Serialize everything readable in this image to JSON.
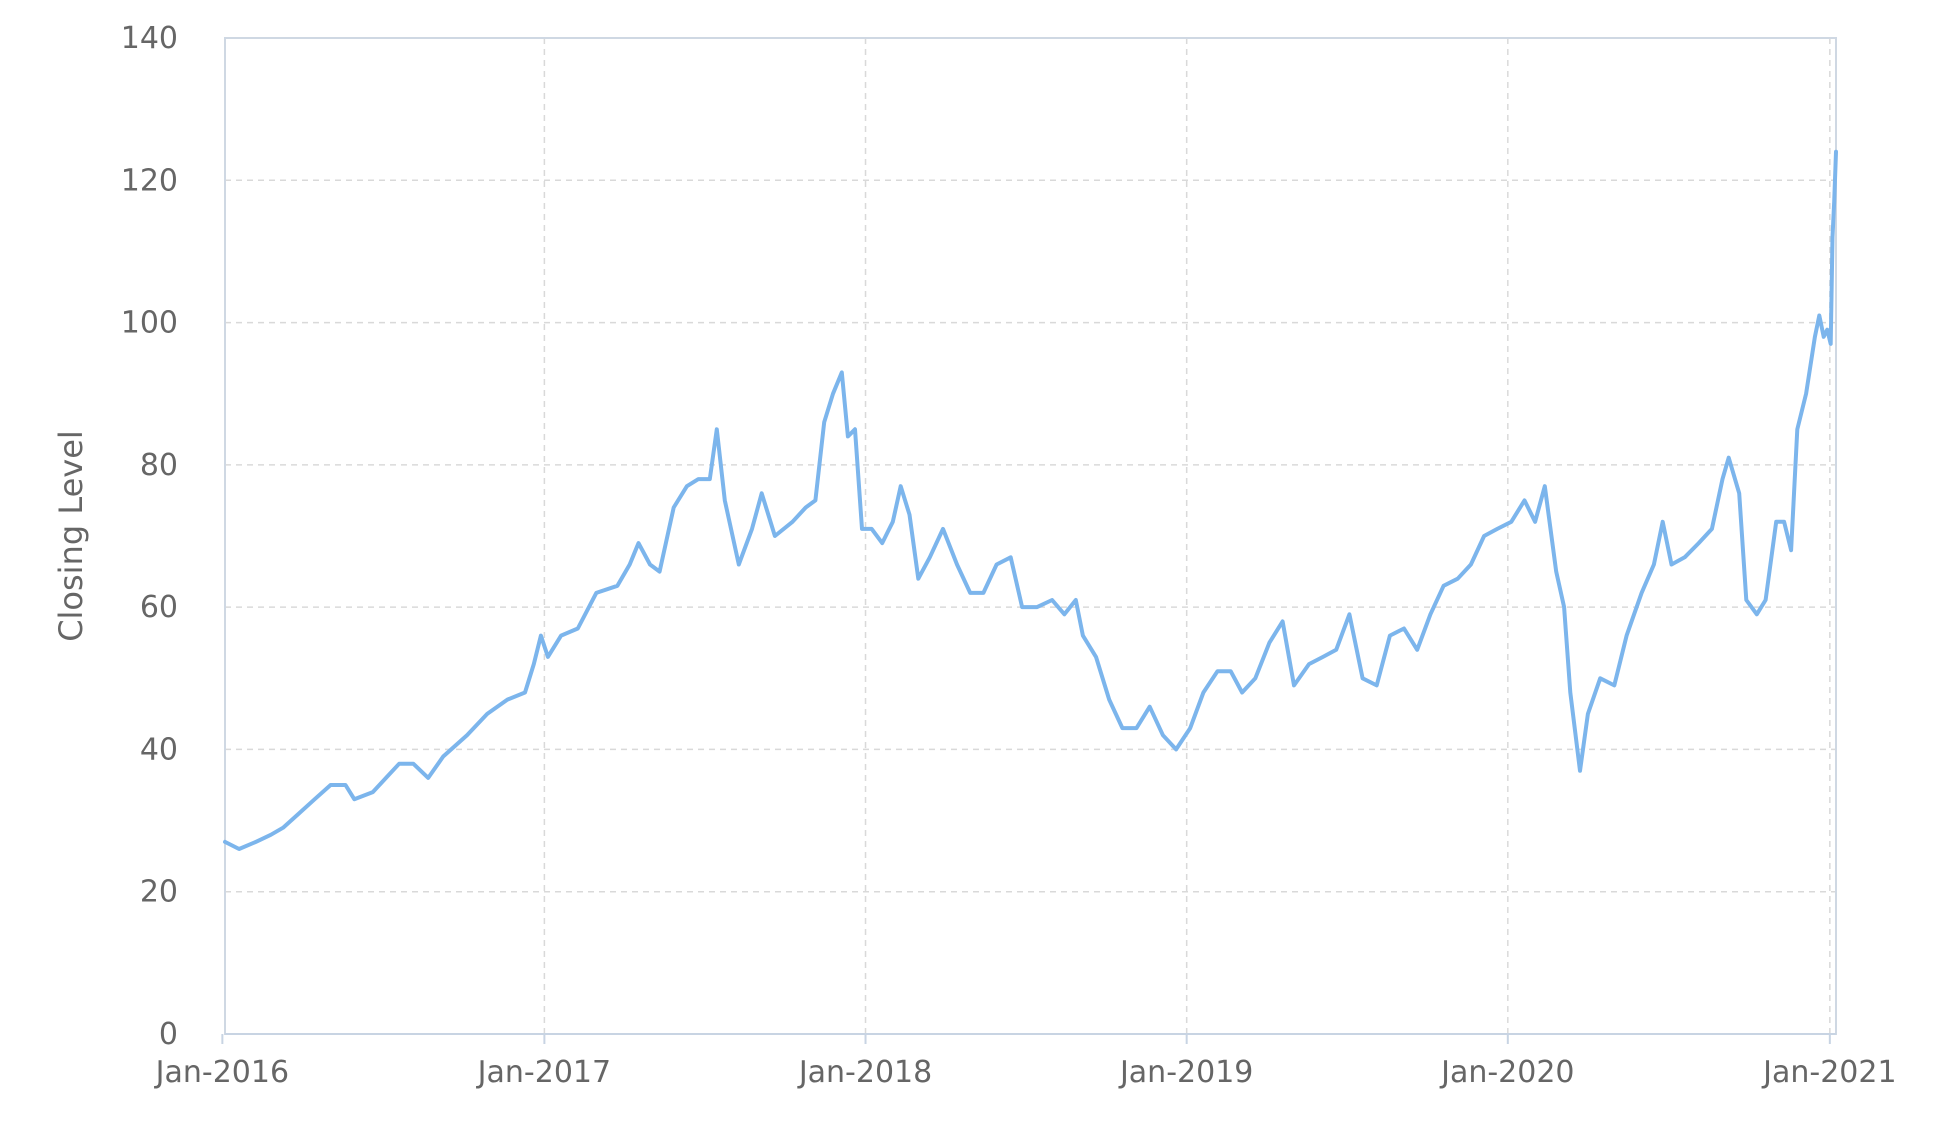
{
  "chart_data": {
    "type": "line",
    "title": "",
    "xlabel": "",
    "ylabel": "Closing Level",
    "ylim": [
      0,
      140
    ],
    "yticks": [
      "0",
      "20",
      "40",
      "60",
      "80",
      "100",
      "120",
      "140"
    ],
    "xlim": [
      "2016-01-04",
      "2021-01-08"
    ],
    "xticks": [
      {
        "date": "2016-01-01",
        "label": "Jan-2016"
      },
      {
        "date": "2017-01-01",
        "label": "Jan-2017"
      },
      {
        "date": "2018-01-01",
        "label": "Jan-2018"
      },
      {
        "date": "2019-01-01",
        "label": "Jan-2019"
      },
      {
        "date": "2020-01-01",
        "label": "Jan-2020"
      },
      {
        "date": "2021-01-01",
        "label": "Jan-2021"
      }
    ],
    "grid": true,
    "legend": "none",
    "colors": {
      "line": "#7cb5ec",
      "grid": "#d9d9d9",
      "text": "#666666"
    },
    "series": [
      {
        "values": [
          [
            "2016-01-04",
            27
          ],
          [
            "2016-01-20",
            26
          ],
          [
            "2016-02-08",
            27
          ],
          [
            "2016-02-25",
            28
          ],
          [
            "2016-03-10",
            29
          ],
          [
            "2016-03-28",
            31
          ],
          [
            "2016-04-15",
            33
          ],
          [
            "2016-05-03",
            35
          ],
          [
            "2016-05-20",
            35
          ],
          [
            "2016-05-30",
            33
          ],
          [
            "2016-06-20",
            34
          ],
          [
            "2016-07-05",
            36
          ],
          [
            "2016-07-20",
            38
          ],
          [
            "2016-08-05",
            38
          ],
          [
            "2016-08-22",
            36
          ],
          [
            "2016-09-08",
            39
          ],
          [
            "2016-10-05",
            42
          ],
          [
            "2016-10-28",
            45
          ],
          [
            "2016-11-20",
            47
          ],
          [
            "2016-12-10",
            48
          ],
          [
            "2016-12-20",
            52
          ],
          [
            "2016-12-28",
            56
          ],
          [
            "2017-01-05",
            53
          ],
          [
            "2017-01-20",
            56
          ],
          [
            "2017-02-08",
            57
          ],
          [
            "2017-03-01",
            62
          ],
          [
            "2017-03-25",
            63
          ],
          [
            "2017-04-08",
            66
          ],
          [
            "2017-04-18",
            69
          ],
          [
            "2017-05-01",
            66
          ],
          [
            "2017-05-12",
            65
          ],
          [
            "2017-05-28",
            74
          ],
          [
            "2017-06-12",
            77
          ],
          [
            "2017-06-25",
            78
          ],
          [
            "2017-07-08",
            78
          ],
          [
            "2017-07-16",
            85
          ],
          [
            "2017-07-25",
            75
          ],
          [
            "2017-08-10",
            66
          ],
          [
            "2017-08-25",
            71
          ],
          [
            "2017-09-05",
            76
          ],
          [
            "2017-09-20",
            70
          ],
          [
            "2017-10-10",
            72
          ],
          [
            "2017-10-25",
            74
          ],
          [
            "2017-11-05",
            75
          ],
          [
            "2017-11-15",
            86
          ],
          [
            "2017-11-25",
            90
          ],
          [
            "2017-12-05",
            93
          ],
          [
            "2017-12-12",
            84
          ],
          [
            "2017-12-20",
            85
          ],
          [
            "2017-12-28",
            71
          ],
          [
            "2018-01-08",
            71
          ],
          [
            "2018-01-20",
            69
          ],
          [
            "2018-02-01",
            72
          ],
          [
            "2018-02-10",
            77
          ],
          [
            "2018-02-20",
            73
          ],
          [
            "2018-03-02",
            64
          ],
          [
            "2018-03-15",
            67
          ],
          [
            "2018-03-30",
            71
          ],
          [
            "2018-04-15",
            66
          ],
          [
            "2018-04-30",
            62
          ],
          [
            "2018-05-15",
            62
          ],
          [
            "2018-05-30",
            66
          ],
          [
            "2018-06-15",
            67
          ],
          [
            "2018-06-28",
            60
          ],
          [
            "2018-07-15",
            60
          ],
          [
            "2018-08-01",
            61
          ],
          [
            "2018-08-15",
            59
          ],
          [
            "2018-08-28",
            61
          ],
          [
            "2018-09-05",
            56
          ],
          [
            "2018-09-20",
            53
          ],
          [
            "2018-10-05",
            47
          ],
          [
            "2018-10-20",
            43
          ],
          [
            "2018-11-05",
            43
          ],
          [
            "2018-11-20",
            46
          ],
          [
            "2018-12-05",
            42
          ],
          [
            "2018-12-20",
            40
          ],
          [
            "2019-01-05",
            43
          ],
          [
            "2019-01-20",
            48
          ],
          [
            "2019-02-05",
            51
          ],
          [
            "2019-02-20",
            51
          ],
          [
            "2019-03-05",
            48
          ],
          [
            "2019-03-20",
            50
          ],
          [
            "2019-04-05",
            55
          ],
          [
            "2019-04-20",
            58
          ],
          [
            "2019-05-03",
            49
          ],
          [
            "2019-05-20",
            52
          ],
          [
            "2019-06-05",
            53
          ],
          [
            "2019-06-20",
            54
          ],
          [
            "2019-07-05",
            59
          ],
          [
            "2019-07-20",
            50
          ],
          [
            "2019-08-05",
            49
          ],
          [
            "2019-08-20",
            56
          ],
          [
            "2019-09-05",
            57
          ],
          [
            "2019-09-20",
            54
          ],
          [
            "2019-10-05",
            59
          ],
          [
            "2019-10-20",
            63
          ],
          [
            "2019-11-05",
            64
          ],
          [
            "2019-11-20",
            66
          ],
          [
            "2019-12-05",
            70
          ],
          [
            "2019-12-20",
            71
          ],
          [
            "2020-01-05",
            72
          ],
          [
            "2020-01-20",
            75
          ],
          [
            "2020-02-01",
            72
          ],
          [
            "2020-02-12",
            77
          ],
          [
            "2020-02-25",
            65
          ],
          [
            "2020-03-05",
            60
          ],
          [
            "2020-03-12",
            48
          ],
          [
            "2020-03-23",
            37
          ],
          [
            "2020-04-01",
            45
          ],
          [
            "2020-04-15",
            50
          ],
          [
            "2020-05-01",
            49
          ],
          [
            "2020-05-15",
            56
          ],
          [
            "2020-06-01",
            62
          ],
          [
            "2020-06-15",
            66
          ],
          [
            "2020-06-25",
            72
          ],
          [
            "2020-07-05",
            66
          ],
          [
            "2020-07-20",
            67
          ],
          [
            "2020-08-05",
            69
          ],
          [
            "2020-08-20",
            71
          ],
          [
            "2020-09-01",
            78
          ],
          [
            "2020-09-08",
            81
          ],
          [
            "2020-09-20",
            76
          ],
          [
            "2020-09-28",
            61
          ],
          [
            "2020-10-10",
            59
          ],
          [
            "2020-10-20",
            61
          ],
          [
            "2020-11-01",
            72
          ],
          [
            "2020-11-10",
            72
          ],
          [
            "2020-11-18",
            68
          ],
          [
            "2020-11-25",
            85
          ],
          [
            "2020-12-05",
            90
          ],
          [
            "2020-12-15",
            98
          ],
          [
            "2020-12-20",
            101
          ],
          [
            "2020-12-25",
            98
          ],
          [
            "2020-12-29",
            99
          ],
          [
            "2021-01-02",
            97
          ],
          [
            "2021-01-04",
            112
          ],
          [
            "2021-01-06",
            117
          ],
          [
            "2021-01-08",
            124
          ]
        ]
      }
    ]
  }
}
